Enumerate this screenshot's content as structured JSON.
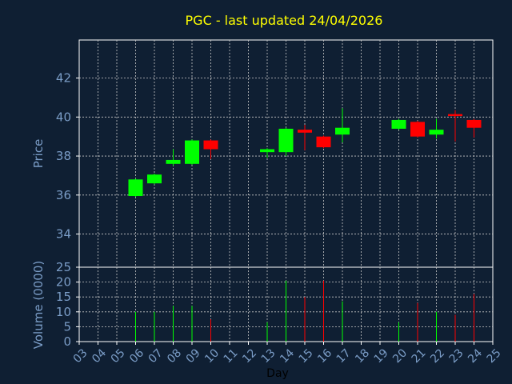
{
  "chart_data": {
    "type": "candlestick",
    "title": "PGC - last updated 24/04/2026",
    "xlabel": "Day",
    "ylabel_price": "Price",
    "ylabel_volume": "Volume (0000)",
    "price_ticks": [
      "34",
      "36",
      "38",
      "40",
      "42"
    ],
    "price_ylim": [
      32.3,
      43.95
    ],
    "volume_ticks": [
      "0",
      "5",
      "10",
      "15",
      "20",
      "25"
    ],
    "volume_ylim": [
      0,
      25
    ],
    "x_ticks": [
      "03",
      "04",
      "05",
      "06",
      "07",
      "08",
      "09",
      "10",
      "11",
      "12",
      "13",
      "14",
      "15",
      "16",
      "17",
      "18",
      "19",
      "20",
      "21",
      "22",
      "23",
      "24",
      "25"
    ],
    "x_domain": [
      3,
      25
    ],
    "grid": true,
    "colors": {
      "background": "#0f1f33",
      "axis": "#ffffff",
      "grid": "#c8c8c8",
      "label": "#7a9cc6",
      "title": "#ffff00",
      "up": "#00ff00",
      "down": "#ff0000"
    },
    "candles": [
      {
        "day": 6,
        "open": 35.95,
        "close": 36.8,
        "high": 36.85,
        "low": 35.9
      },
      {
        "day": 7,
        "open": 36.6,
        "close": 37.05,
        "high": 37.1,
        "low": 36.55
      },
      {
        "day": 8,
        "open": 37.6,
        "close": 37.8,
        "high": 38.35,
        "low": 37.5
      },
      {
        "day": 9,
        "open": 37.6,
        "close": 38.8,
        "high": 38.85,
        "low": 37.55
      },
      {
        "day": 10,
        "open": 38.8,
        "close": 38.35,
        "high": 38.85,
        "low": 37.85
      },
      {
        "day": 13,
        "open": 38.2,
        "close": 38.35,
        "high": 38.4,
        "low": 37.9
      },
      {
        "day": 14,
        "open": 38.2,
        "close": 39.4,
        "high": 39.45,
        "low": 38.0
      },
      {
        "day": 15,
        "open": 39.35,
        "close": 39.2,
        "high": 39.6,
        "low": 38.3
      },
      {
        "day": 16,
        "open": 39.0,
        "close": 38.45,
        "high": 39.05,
        "low": 38.4
      },
      {
        "day": 17,
        "open": 39.1,
        "close": 39.45,
        "high": 40.45,
        "low": 38.7
      },
      {
        "day": 20,
        "open": 39.4,
        "close": 39.85,
        "high": 39.9,
        "low": 39.35
      },
      {
        "day": 21,
        "open": 39.75,
        "close": 39.0,
        "high": 39.8,
        "low": 38.95
      },
      {
        "day": 22,
        "open": 39.1,
        "close": 39.35,
        "high": 39.9,
        "low": 38.9
      },
      {
        "day": 23,
        "open": 40.15,
        "close": 40.05,
        "high": 40.35,
        "low": 38.75
      },
      {
        "day": 24,
        "open": 39.85,
        "close": 39.45,
        "high": 39.9,
        "low": 38.95
      }
    ],
    "volume": [
      {
        "day": 6,
        "value": 10
      },
      {
        "day": 7,
        "value": 10
      },
      {
        "day": 8,
        "value": 12
      },
      {
        "day": 9,
        "value": 12
      },
      {
        "day": 10,
        "value": 7.5
      },
      {
        "day": 13,
        "value": 6.5
      },
      {
        "day": 14,
        "value": 20.5
      },
      {
        "day": 15,
        "value": 15
      },
      {
        "day": 16,
        "value": 20.5
      },
      {
        "day": 17,
        "value": 13.5
      },
      {
        "day": 20,
        "value": 6.5
      },
      {
        "day": 21,
        "value": 13
      },
      {
        "day": 22,
        "value": 10
      },
      {
        "day": 23,
        "value": 9
      },
      {
        "day": 24,
        "value": 16
      }
    ]
  }
}
